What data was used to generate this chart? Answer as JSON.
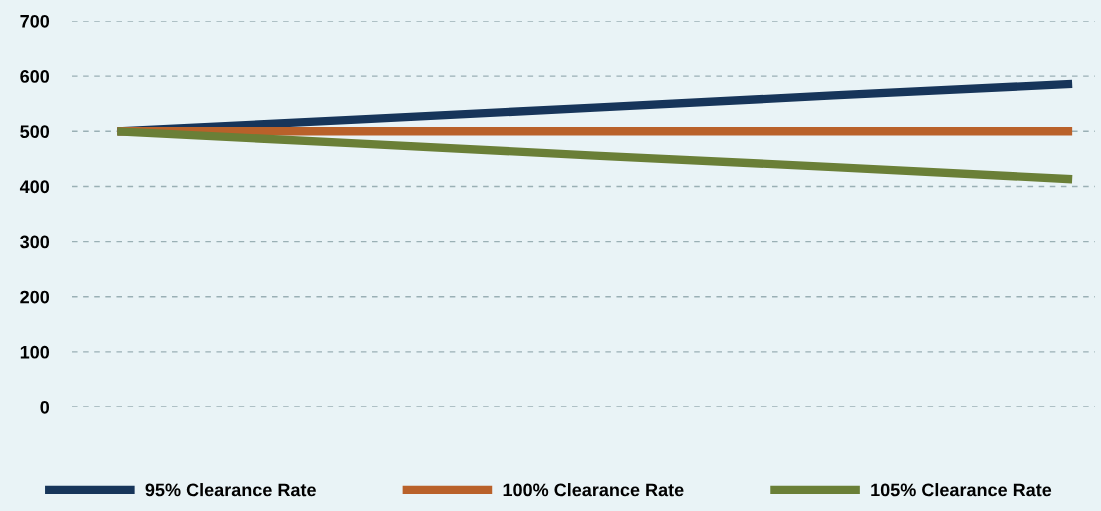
{
  "chart_data": {
    "type": "line",
    "categories": [
      null,
      null,
      null,
      null,
      null
    ],
    "series": [
      {
        "name": "95% Clearance Rate",
        "color": "#17355a",
        "values": [
          500,
          521,
          543,
          565,
          586
        ]
      },
      {
        "name": "100% Clearance Rate",
        "color": "#b9612a",
        "values": [
          500,
          500,
          500,
          500,
          500
        ]
      },
      {
        "name": "105% Clearance Rate",
        "color": "#6a7f37",
        "values": [
          500,
          478,
          456,
          435,
          413
        ]
      }
    ],
    "ylim": [
      0,
      700
    ],
    "yticks": [
      0,
      100,
      200,
      300,
      400,
      500,
      600,
      700
    ],
    "grid": "y",
    "legend": "bottom",
    "marker": "none",
    "line_style": "solid"
  }
}
